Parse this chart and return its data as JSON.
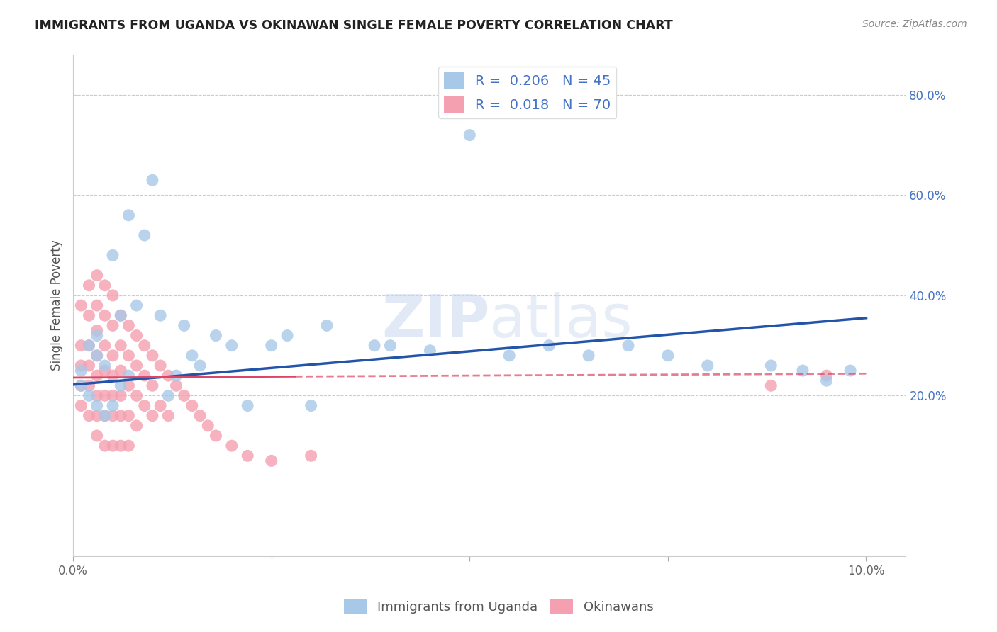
{
  "title": "IMMIGRANTS FROM UGANDA VS OKINAWAN SINGLE FEMALE POVERTY CORRELATION CHART",
  "source": "Source: ZipAtlas.com",
  "xlabel": "",
  "ylabel": "Single Female Poverty",
  "r_uganda": 0.206,
  "n_uganda": 45,
  "r_okinawan": 0.018,
  "n_okinawan": 70,
  "xlim": [
    0.0,
    0.105
  ],
  "ylim": [
    -0.12,
    0.88
  ],
  "yticks_right": [
    0.2,
    0.4,
    0.6,
    0.8
  ],
  "xticks": [
    0.0,
    0.025,
    0.05,
    0.075,
    0.1
  ],
  "watermark": "ZIPatlas",
  "blue_color": "#a8c8e8",
  "pink_color": "#f4a0b0",
  "blue_line_color": "#2255aa",
  "pink_line_color": "#dd4466",
  "uganda_x": [
    0.001,
    0.001,
    0.002,
    0.002,
    0.003,
    0.003,
    0.003,
    0.004,
    0.004,
    0.005,
    0.005,
    0.006,
    0.006,
    0.007,
    0.007,
    0.008,
    0.009,
    0.01,
    0.011,
    0.012,
    0.013,
    0.014,
    0.015,
    0.016,
    0.018,
    0.02,
    0.022,
    0.025,
    0.027,
    0.03,
    0.032,
    0.038,
    0.04,
    0.045,
    0.05,
    0.055,
    0.06,
    0.065,
    0.07,
    0.075,
    0.08,
    0.088,
    0.092,
    0.095,
    0.098
  ],
  "uganda_y": [
    0.25,
    0.22,
    0.3,
    0.2,
    0.32,
    0.18,
    0.28,
    0.26,
    0.16,
    0.48,
    0.18,
    0.36,
    0.22,
    0.56,
    0.24,
    0.38,
    0.52,
    0.63,
    0.36,
    0.2,
    0.24,
    0.34,
    0.28,
    0.26,
    0.32,
    0.3,
    0.18,
    0.3,
    0.32,
    0.18,
    0.34,
    0.3,
    0.3,
    0.29,
    0.72,
    0.28,
    0.3,
    0.28,
    0.3,
    0.28,
    0.26,
    0.26,
    0.25,
    0.23,
    0.25
  ],
  "okinawan_x": [
    0.001,
    0.001,
    0.001,
    0.001,
    0.001,
    0.002,
    0.002,
    0.002,
    0.002,
    0.002,
    0.002,
    0.003,
    0.003,
    0.003,
    0.003,
    0.003,
    0.003,
    0.003,
    0.003,
    0.004,
    0.004,
    0.004,
    0.004,
    0.004,
    0.004,
    0.004,
    0.005,
    0.005,
    0.005,
    0.005,
    0.005,
    0.005,
    0.005,
    0.006,
    0.006,
    0.006,
    0.006,
    0.006,
    0.006,
    0.007,
    0.007,
    0.007,
    0.007,
    0.007,
    0.008,
    0.008,
    0.008,
    0.008,
    0.009,
    0.009,
    0.009,
    0.01,
    0.01,
    0.01,
    0.011,
    0.011,
    0.012,
    0.012,
    0.013,
    0.014,
    0.015,
    0.016,
    0.017,
    0.018,
    0.02,
    0.022,
    0.025,
    0.03,
    0.088,
    0.095
  ],
  "okinawan_y": [
    0.38,
    0.3,
    0.26,
    0.22,
    0.18,
    0.42,
    0.36,
    0.3,
    0.26,
    0.22,
    0.16,
    0.44,
    0.38,
    0.33,
    0.28,
    0.24,
    0.2,
    0.16,
    0.12,
    0.42,
    0.36,
    0.3,
    0.25,
    0.2,
    0.16,
    0.1,
    0.4,
    0.34,
    0.28,
    0.24,
    0.2,
    0.16,
    0.1,
    0.36,
    0.3,
    0.25,
    0.2,
    0.16,
    0.1,
    0.34,
    0.28,
    0.22,
    0.16,
    0.1,
    0.32,
    0.26,
    0.2,
    0.14,
    0.3,
    0.24,
    0.18,
    0.28,
    0.22,
    0.16,
    0.26,
    0.18,
    0.24,
    0.16,
    0.22,
    0.2,
    0.18,
    0.16,
    0.14,
    0.12,
    0.1,
    0.08,
    0.07,
    0.08,
    0.22,
    0.24
  ],
  "blue_line_x0": 0.0,
  "blue_line_y0": 0.222,
  "blue_line_x1": 0.1,
  "blue_line_y1": 0.355,
  "pink_line_x0": 0.0,
  "pink_line_y0": 0.236,
  "pink_line_x1": 0.1,
  "pink_line_y1": 0.244
}
